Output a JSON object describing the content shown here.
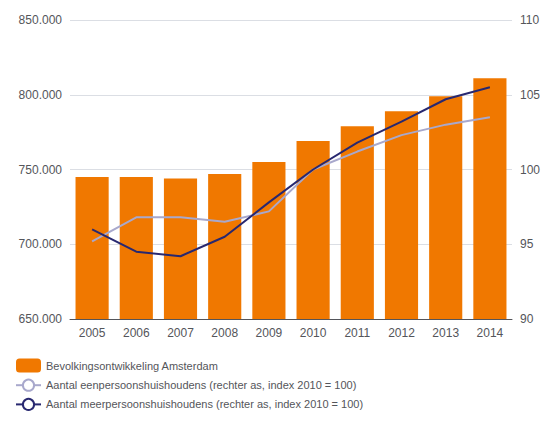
{
  "chart_data": {
    "type": "bar",
    "categories": [
      "2005",
      "2006",
      "2007",
      "2008",
      "2009",
      "2010",
      "2011",
      "2012",
      "2013",
      "2014"
    ],
    "series": [
      {
        "name": "Bevolkingsontwikkeling Amsterdam",
        "type": "bar",
        "color": "#F07800",
        "values": [
          745000,
          745000,
          744000,
          747000,
          755000,
          769000,
          779000,
          789000,
          799000,
          811000
        ]
      },
      {
        "name": "Aantal eenpersoonshuishoudens (rechter as, index 2010 = 100)",
        "type": "line",
        "color": "#A8A8CC",
        "axis": "y2",
        "values": [
          95.2,
          96.8,
          96.8,
          96.5,
          97.2,
          100.0,
          101.2,
          102.3,
          103.0,
          103.5
        ]
      },
      {
        "name": "Aantal meerpersoonshuishoudens (rechter as, index 2010 = 100)",
        "type": "line",
        "color": "#282870",
        "axis": "y2",
        "values": [
          96.0,
          94.5,
          94.2,
          95.5,
          97.8,
          100.0,
          101.8,
          103.2,
          104.7,
          105.5
        ]
      }
    ],
    "ylim": [
      650000,
      850000
    ],
    "yticks": [
      {
        "value": 650000,
        "label": "650.000"
      },
      {
        "value": 700000,
        "label": "700.000"
      },
      {
        "value": 750000,
        "label": "750.000"
      },
      {
        "value": 800000,
        "label": "800.000"
      },
      {
        "value": 850000,
        "label": "850.000"
      }
    ],
    "y2lim": [
      90,
      110
    ],
    "y2ticks": [
      90,
      95,
      100,
      105,
      110
    ],
    "grid": true,
    "legend": "bottom"
  }
}
